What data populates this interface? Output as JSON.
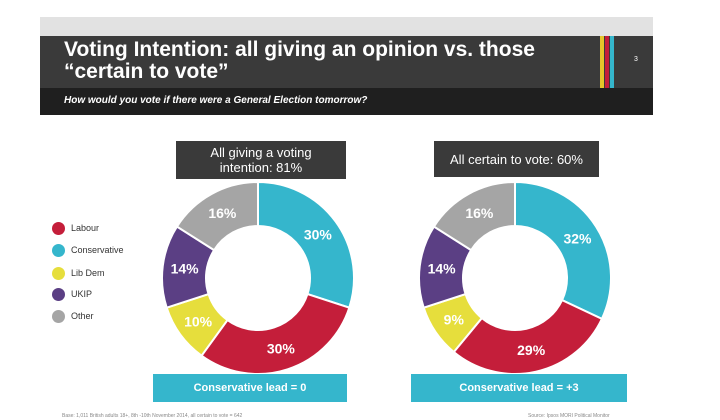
{
  "slide": {
    "title_line1": "Voting Intention: all giving an opinion vs. those",
    "title_line2": "“certain to vote”",
    "subtitle": "How would you vote if there were a General Election tomorrow?",
    "page_number": "3",
    "stripe_colors": [
      "#e6c52a",
      "#c41e3a",
      "#35b6cc"
    ]
  },
  "legend": [
    {
      "label": "Labour",
      "color": "#c41e3a"
    },
    {
      "label": "Conservative",
      "color": "#35b6cc"
    },
    {
      "label": "Lib Dem",
      "color": "#e6de3c"
    },
    {
      "label": "UKIP",
      "color": "#5b3f84"
    },
    {
      "label": "Other",
      "color": "#a5a5a5"
    }
  ],
  "footer": {
    "base": "Base: 1,011 British adults 18+, 8th -10th November 2014, all certain to vote = 642",
    "source": "Source: Ipsos MORI Political Monitor"
  },
  "chart_data": [
    {
      "type": "pie",
      "title_line1": "All giving a voting",
      "title_line2": "intention: 81%",
      "lead": "Conservative lead = 0",
      "slices": [
        {
          "label": "Conservative",
          "value": 30,
          "display": "30%"
        },
        {
          "label": "Labour",
          "value": 30,
          "display": "30%"
        },
        {
          "label": "Lib Dem",
          "value": 10,
          "display": "10%"
        },
        {
          "label": "UKIP",
          "value": 14,
          "display": "14%"
        },
        {
          "label": "Other",
          "value": 16,
          "display": "16%"
        }
      ]
    },
    {
      "type": "pie",
      "title_line1": "All certain to vote: 60%",
      "title_line2": "",
      "lead": "Conservative lead = +3",
      "slices": [
        {
          "label": "Conservative",
          "value": 32,
          "display": "32%"
        },
        {
          "label": "Labour",
          "value": 29,
          "display": "29%"
        },
        {
          "label": "Lib Dem",
          "value": 9,
          "display": "9%"
        },
        {
          "label": "UKIP",
          "value": 14,
          "display": "14%"
        },
        {
          "label": "Other",
          "value": 16,
          "display": "16%"
        }
      ]
    }
  ]
}
